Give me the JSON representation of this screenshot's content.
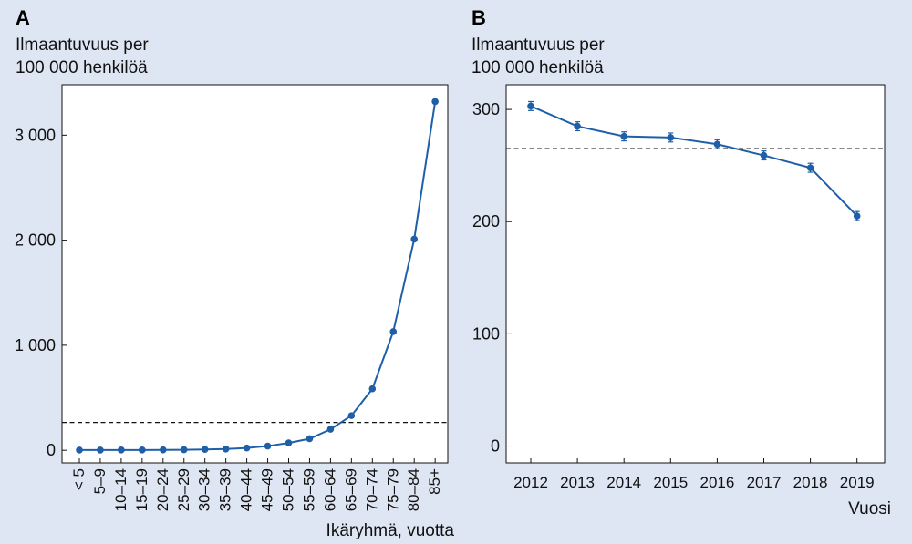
{
  "colors": {
    "background": "#dfe6f3",
    "plot_background": "#ffffff",
    "series": "#1f5fa8",
    "reference_line": "#111111"
  },
  "chart_data": [
    {
      "panel": "A",
      "type": "line",
      "title": "",
      "ylabel_lines": [
        "Ilmaantuvuus per",
        "100 000 henkilöä"
      ],
      "xlabel": "Ikäryhmä, vuotta",
      "categories": [
        "< 5",
        "5–9",
        "10–14",
        "15–19",
        "20–24",
        "25–29",
        "30–34",
        "35–39",
        "40–44",
        "45–49",
        "50–54",
        "55–59",
        "60–64",
        "65–69",
        "70–74",
        "75–79",
        "80–84",
        "85+"
      ],
      "values": [
        2,
        2,
        3,
        3,
        4,
        5,
        8,
        12,
        22,
        40,
        70,
        110,
        200,
        330,
        585,
        1130,
        2010,
        3320
      ],
      "reference_value": 265,
      "ylim": [
        -120,
        3480
      ],
      "yticks": [
        0,
        1000,
        2000,
        3000
      ],
      "ytick_labels": [
        "0",
        "1 000",
        "2 000",
        "3 000"
      ],
      "grid": false,
      "legend": "none",
      "x_tick_rotation": -90
    },
    {
      "panel": "B",
      "type": "line",
      "title": "",
      "ylabel_lines": [
        "Ilmaantuvuus per",
        "100 000 henkilöä"
      ],
      "xlabel": "Vuosi",
      "categories": [
        "2012",
        "2013",
        "2014",
        "2015",
        "2016",
        "2017",
        "2018",
        "2019"
      ],
      "values": [
        303,
        285,
        276,
        275,
        269,
        259,
        248,
        205
      ],
      "error_bars": [
        4,
        4,
        4,
        4,
        4,
        4,
        4,
        4
      ],
      "reference_value": 265,
      "ylim": [
        -15,
        322
      ],
      "yticks": [
        0,
        100,
        200,
        300
      ],
      "ytick_labels": [
        "0",
        "100",
        "200",
        "300"
      ],
      "grid": false,
      "legend": "none",
      "x_tick_rotation": 0
    }
  ]
}
